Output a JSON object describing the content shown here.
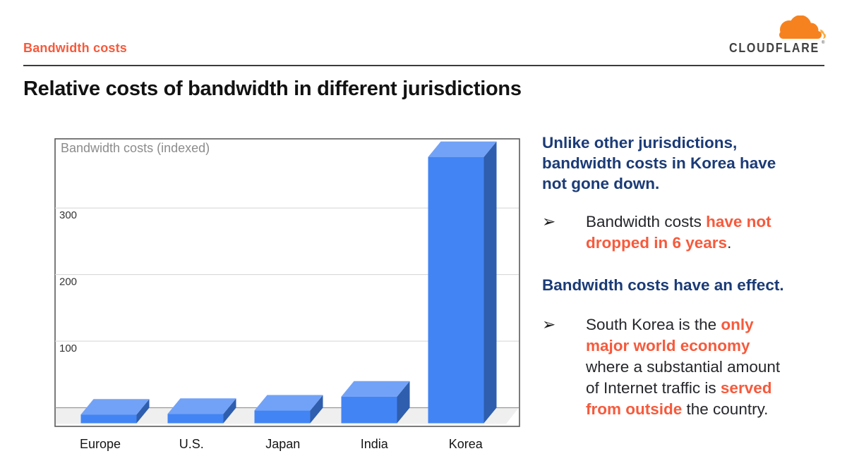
{
  "header": {
    "eyebrow": "Bandwidth costs",
    "logo": {
      "brand": "CLOUDFLARE",
      "reg_mark": "®"
    }
  },
  "title": "Relative costs of bandwidth in different jurisdictions",
  "colors": {
    "accent": "#F65A3C",
    "navy": "#1B3B76",
    "logo_orange": "#F6821F",
    "logo_light_orange": "#FBAD41",
    "logo_text": "#404041",
    "bar_front": "#4384F4",
    "bar_top": "#72A2F7",
    "bar_side": "#2E5EAD",
    "grid_line": "#D8D8D8",
    "axis_line": "#999999",
    "floor": "#EFEFEF",
    "chart_border": "#5A5A5A",
    "chart_title": "#8C8C8C",
    "tick_label": "#333333",
    "category_label": "#141414"
  },
  "chart_data": {
    "type": "bar",
    "variant": "3d-column",
    "title": "Bandwidth costs (indexed)",
    "categories": [
      "Europe",
      "U.S.",
      "Japan",
      "India",
      "Korea"
    ],
    "values": [
      13,
      14,
      19,
      40,
      400
    ],
    "yticks": [
      100,
      200,
      300
    ],
    "ylim": [
      0,
      400
    ],
    "xlabel": "",
    "ylabel": "",
    "grid": true,
    "legend": "none"
  },
  "sidebar_text": {
    "bullet_char": "➢",
    "heading1": "Unlike other jurisdictions,\nbandwidth costs in Korea have\nnot gone down.",
    "bullet1": [
      {
        "text": "Bandwidth costs ",
        "style": "plain"
      },
      {
        "text": "have not\ndropped in 6 years",
        "style": "accent"
      },
      {
        "text": ".",
        "style": "plain"
      }
    ],
    "heading2": "Bandwidth costs have an effect.",
    "bullet2": [
      {
        "text": "South Korea is the ",
        "style": "plain"
      },
      {
        "text": "only\nmajor world economy",
        "style": "accent"
      },
      {
        "text": "\nwhere a substantial amount\nof Internet traffic is ",
        "style": "plain"
      },
      {
        "text": "served\nfrom outside",
        "style": "accent"
      },
      {
        "text": " the country.",
        "style": "plain"
      }
    ]
  }
}
